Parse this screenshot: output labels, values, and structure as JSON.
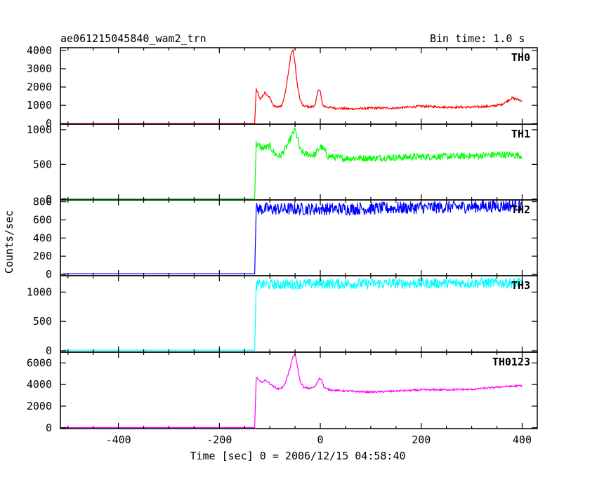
{
  "header": {
    "title": "ae061215045840_wam2_trn",
    "bin_time": "Bin time: 1.0 s"
  },
  "ylabel": "Counts/sec",
  "xlabel": "Time [sec] 0 = 2006/12/15 04:58:40",
  "chart_data": [
    {
      "type": "line",
      "name": "TH0",
      "color": "#ff0000",
      "xlim": [
        -515,
        430
      ],
      "ylim": [
        -30,
        4150
      ],
      "xticks": [
        -400,
        -200,
        0,
        200,
        400
      ],
      "yticks": [
        0,
        1000,
        2000,
        3000,
        4000
      ],
      "ytick_labels": [
        "0",
        "1000",
        "2000",
        "3000",
        "4000"
      ],
      "baseline": 5,
      "noise": 60,
      "x": [
        -130,
        -127,
        -119,
        -110,
        -100,
        -92,
        -84,
        -76,
        -70,
        -64,
        -58,
        -54,
        -50,
        -46,
        -40,
        -34,
        -28,
        -20,
        -10,
        -4,
        0,
        4,
        8,
        14,
        30,
        60,
        100,
        150,
        200,
        250,
        300,
        340,
        360,
        380,
        400
      ],
      "y": [
        5,
        1900,
        1300,
        1700,
        1400,
        950,
        900,
        1000,
        1600,
        2700,
        3800,
        4000,
        3300,
        2200,
        1300,
        950,
        950,
        900,
        1000,
        1900,
        1750,
        1050,
        950,
        900,
        850,
        800,
        850,
        850,
        950,
        900,
        900,
        950,
        1050,
        1400,
        1250
      ]
    },
    {
      "type": "line",
      "name": "TH1",
      "color": "#00ff00",
      "xlim": [
        -515,
        430
      ],
      "ylim": [
        -12,
        1080
      ],
      "xticks": [
        -400,
        -200,
        0,
        200,
        400
      ],
      "yticks": [
        0,
        500,
        1000
      ],
      "ytick_labels": [
        "0",
        "500",
        "1000"
      ],
      "baseline": 10,
      "noise": 50,
      "x": [
        -130,
        -127,
        -115,
        -100,
        -90,
        -80,
        -70,
        -62,
        -55,
        -50,
        -45,
        -40,
        -30,
        -20,
        -10,
        0,
        6,
        15,
        40,
        100,
        200,
        300,
        350,
        400
      ],
      "y": [
        10,
        800,
        730,
        760,
        650,
        620,
        710,
        820,
        930,
        1000,
        870,
        700,
        650,
        640,
        640,
        760,
        720,
        620,
        590,
        590,
        610,
        620,
        640,
        630
      ]
    },
    {
      "type": "line",
      "name": "TH2",
      "color": "#0000ff",
      "xlim": [
        -515,
        430
      ],
      "ylim": [
        -15,
        820
      ],
      "xticks": [
        -400,
        -200,
        0,
        200,
        400
      ],
      "yticks": [
        0,
        200,
        400,
        600,
        800
      ],
      "ytick_labels": [
        "0",
        "200",
        "400",
        "600",
        "800"
      ],
      "baseline": 5,
      "noise": 70,
      "x": [
        -130,
        -127,
        -100,
        0,
        100,
        200,
        300,
        400
      ],
      "y": [
        5,
        720,
        720,
        720,
        725,
        735,
        745,
        760
      ]
    },
    {
      "type": "line",
      "name": "TH3",
      "color": "#00ffff",
      "xlim": [
        -515,
        430
      ],
      "ylim": [
        -25,
        1280
      ],
      "xticks": [
        -400,
        -200,
        0,
        200,
        400
      ],
      "yticks": [
        0,
        500,
        1000
      ],
      "ytick_labels": [
        "0",
        "500",
        "1000"
      ],
      "baseline": 10,
      "noise": 90,
      "x": [
        -130,
        -127,
        -100,
        0,
        100,
        200,
        300,
        400
      ],
      "y": [
        10,
        1120,
        1130,
        1140,
        1145,
        1150,
        1155,
        1160
      ]
    },
    {
      "type": "line",
      "name": "TH0123",
      "color": "#ff00ff",
      "xlim": [
        -515,
        430
      ],
      "ylim": [
        -80,
        7000
      ],
      "xticks": [
        -400,
        -200,
        0,
        200,
        400
      ],
      "yticks": [
        0,
        2000,
        4000,
        6000
      ],
      "ytick_labels": [
        "0",
        "2000",
        "4000",
        "6000"
      ],
      "baseline": 20,
      "noise": 80,
      "x": [
        -130,
        -127,
        -118,
        -108,
        -95,
        -85,
        -75,
        -68,
        -60,
        -54,
        -50,
        -46,
        -40,
        -32,
        -20,
        -10,
        -2,
        2,
        8,
        20,
        50,
        100,
        200,
        300,
        360,
        400
      ],
      "y": [
        20,
        4700,
        4200,
        4400,
        3900,
        3600,
        3700,
        4300,
        5500,
        6600,
        6800,
        5900,
        4300,
        3700,
        3650,
        3800,
        4600,
        4500,
        3700,
        3500,
        3400,
        3300,
        3500,
        3550,
        3800,
        3900
      ]
    }
  ]
}
